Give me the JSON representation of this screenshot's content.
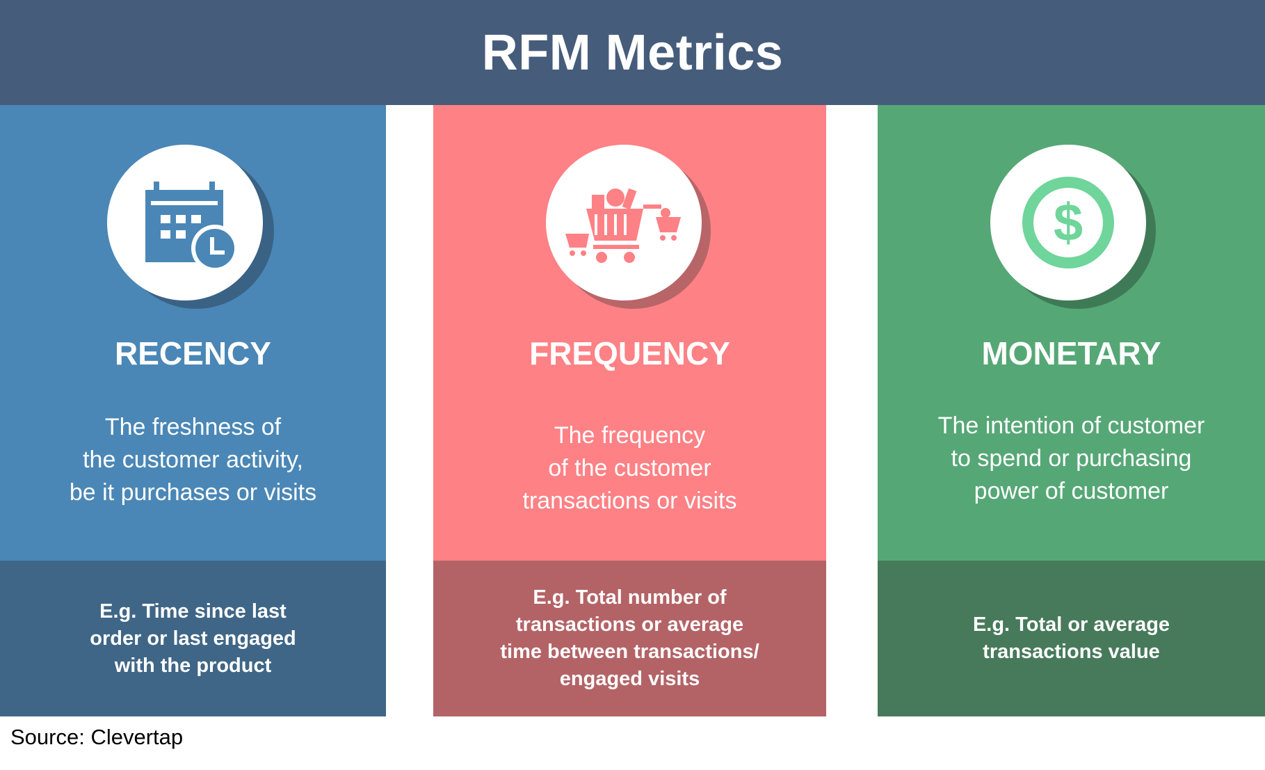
{
  "title": "RFM Metrics",
  "source": "Source: Clevertap",
  "colors": {
    "header": "#465c7b",
    "recency": "#4a87b6",
    "recency_dark": "#3f6686",
    "frequency": "#fe8185",
    "frequency_dark": "#b36366",
    "monetary": "#56a776",
    "monetary_dark": "#477a5b",
    "dollar_green": "#6fd59a"
  },
  "columns": [
    {
      "icon": "calendar-clock-icon",
      "title": "RECENCY",
      "description": [
        "The freshness of",
        "the customer activity,",
        "be it purchases or visits"
      ],
      "example": [
        "E.g. Time since last",
        "order or last engaged",
        "with the product"
      ]
    },
    {
      "icon": "shopping-carts-icon",
      "title": "FREQUENCY",
      "description": [
        "The frequency",
        "of the customer",
        "transactions or visits"
      ],
      "example": [
        "E.g. Total number of",
        "transactions or average",
        "time between transactions/",
        "engaged visits"
      ]
    },
    {
      "icon": "dollar-coin-icon",
      "title": "MONETARY",
      "description": [
        "The intention of customer",
        "to spend or purchasing",
        "power of customer"
      ],
      "example": [
        "E.g. Total or average",
        "transactions value"
      ]
    }
  ]
}
